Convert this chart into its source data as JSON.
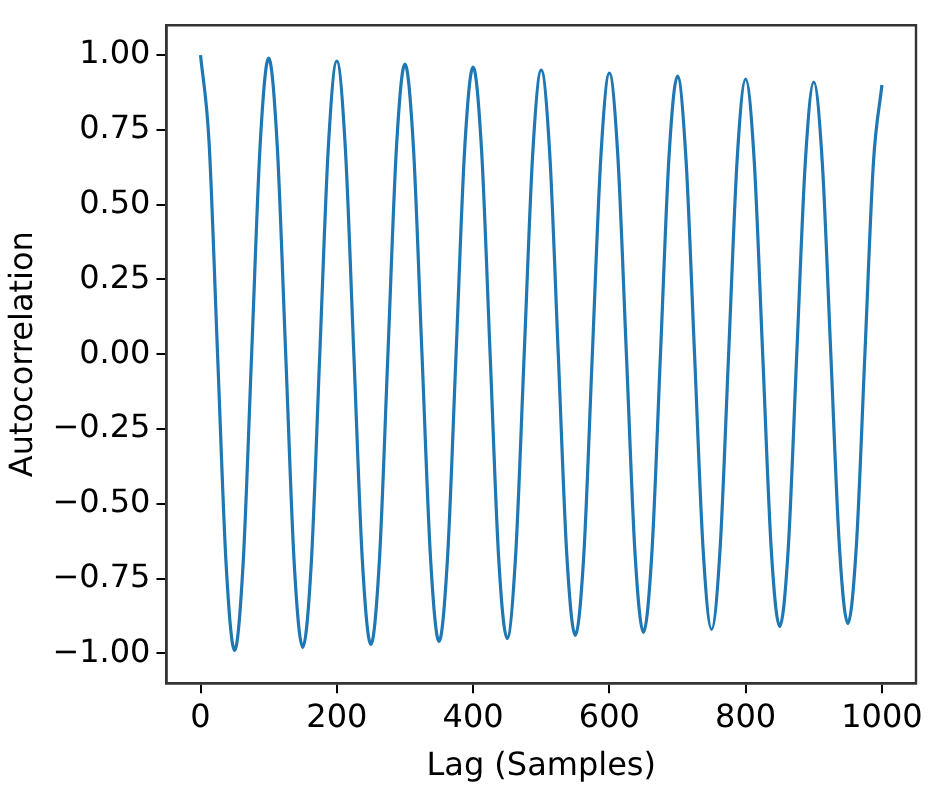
{
  "chart_data": {
    "type": "line",
    "xlabel": "Lag (Samples)",
    "ylabel": "Autocorrelation",
    "xlim": [
      -50,
      1050
    ],
    "ylim": [
      -1.1,
      1.1
    ],
    "xticks": [
      0,
      200,
      400,
      600,
      800,
      1000
    ],
    "yticks": [
      {
        "value": -1,
        "label": "−1.00"
      },
      {
        "value": -0.75,
        "label": "−0.75"
      },
      {
        "value": -0.5,
        "label": "−0.50"
      },
      {
        "value": -0.25,
        "label": "−0.25"
      },
      {
        "value": 0,
        "label": "0.00"
      },
      {
        "value": 0.25,
        "label": "0.25"
      },
      {
        "value": 0.5,
        "label": "0.50"
      },
      {
        "value": 0.75,
        "label": "0.75"
      },
      {
        "value": 1,
        "label": "1.00"
      }
    ],
    "grid": false,
    "legend": false,
    "marker": "none",
    "line_style": "solid",
    "x": [
      0,
      12.5,
      25,
      37.5,
      50,
      62.5,
      75,
      87.5,
      100,
      112.5,
      125,
      137.5,
      150,
      162.5,
      175,
      187.5,
      200,
      212.5,
      225,
      237.5,
      250,
      262.5,
      275,
      287.5,
      300,
      312.5,
      325,
      337.5,
      350,
      362.5,
      375,
      387.5,
      400,
      412.5,
      425,
      437.5,
      450,
      462.5,
      475,
      487.5,
      500,
      512.5,
      525,
      537.5,
      550,
      562.5,
      575,
      587.5,
      600,
      612.5,
      625,
      637.5,
      650,
      662.5,
      675,
      687.5,
      700,
      712.5,
      725,
      737.5,
      750,
      762.5,
      775,
      787.5,
      800,
      812.5,
      825,
      837.5,
      850,
      862.5,
      875,
      887.5,
      900,
      912.5,
      925,
      937.5,
      950,
      962.5,
      975,
      987.5,
      1000
    ],
    "series": [
      {
        "color": "#1f77b4",
        "values": [
          1.0,
          0.71,
          0,
          -0.7,
          -0.99,
          -0.7,
          0,
          0.7,
          0.99,
          0.7,
          0,
          -0.7,
          -0.98,
          -0.7,
          0,
          0.69,
          0.98,
          0.69,
          0,
          -0.69,
          -0.97,
          -0.69,
          0,
          0.69,
          0.97,
          0.69,
          0,
          -0.68,
          -0.96,
          -0.68,
          0,
          0.68,
          0.96,
          0.68,
          0,
          -0.68,
          -0.95,
          -0.67,
          0,
          0.67,
          0.95,
          0.67,
          0,
          -0.67,
          -0.94,
          -0.67,
          0,
          0.66,
          0.94,
          0.66,
          0,
          -0.66,
          -0.93,
          -0.66,
          0,
          0.66,
          0.93,
          0.65,
          0,
          -0.65,
          -0.92,
          -0.65,
          0,
          0.65,
          0.92,
          0.65,
          0,
          -0.65,
          -0.91,
          -0.65,
          0,
          0.64,
          0.91,
          0.64,
          0,
          -0.64,
          -0.9,
          -0.64,
          0,
          0.64,
          0.9
        ]
      }
    ]
  }
}
